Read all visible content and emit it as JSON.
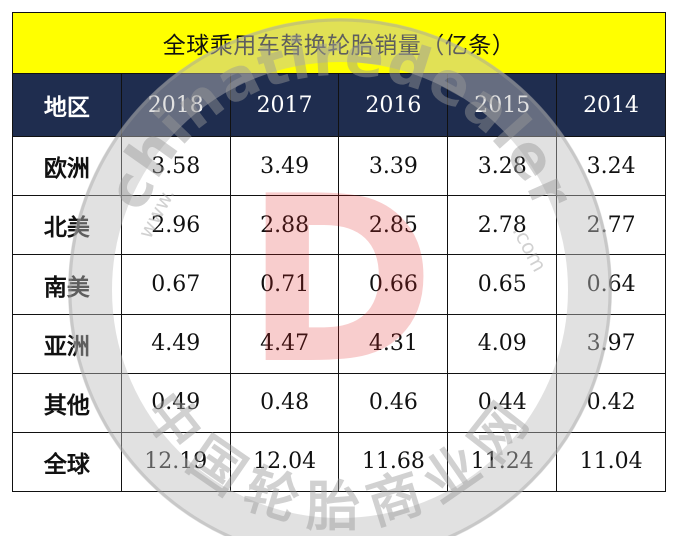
{
  "title": "全球乘用车替换轮胎销量（亿条）",
  "header": {
    "region_label": "地区",
    "years": [
      "2018",
      "2017",
      "2016",
      "2015",
      "2014"
    ]
  },
  "rows": [
    {
      "region": "欧洲",
      "values": [
        "3.58",
        "3.49",
        "3.39",
        "3.28",
        "3.24"
      ]
    },
    {
      "region": "北美",
      "values": [
        "2.96",
        "2.88",
        "2.85",
        "2.78",
        "2.77"
      ]
    },
    {
      "region": "南美",
      "values": [
        "0.67",
        "0.71",
        "0.66",
        "0.65",
        "0.64"
      ]
    },
    {
      "region": "亚洲",
      "values": [
        "4.49",
        "4.47",
        "4.31",
        "4.09",
        "3.97"
      ]
    },
    {
      "region": "其他",
      "values": [
        "0.49",
        "0.48",
        "0.46",
        "0.44",
        "0.42"
      ]
    },
    {
      "region": "全球",
      "values": [
        "12.19",
        "12.04",
        "11.68",
        "11.24",
        "11.04"
      ]
    }
  ],
  "watermark": {
    "site_text": "chinatiredealer",
    "www_text": "www.",
    "com_text": ".com",
    "chinese_text": "中国轮胎商业网",
    "logo_letter": "D"
  },
  "colors": {
    "title_bg": "#ffff00",
    "header_bg": "#1f2d4f",
    "header_text": "#ffffff",
    "watermark_gray": "#9a9a9a",
    "watermark_red": "#e02020"
  }
}
